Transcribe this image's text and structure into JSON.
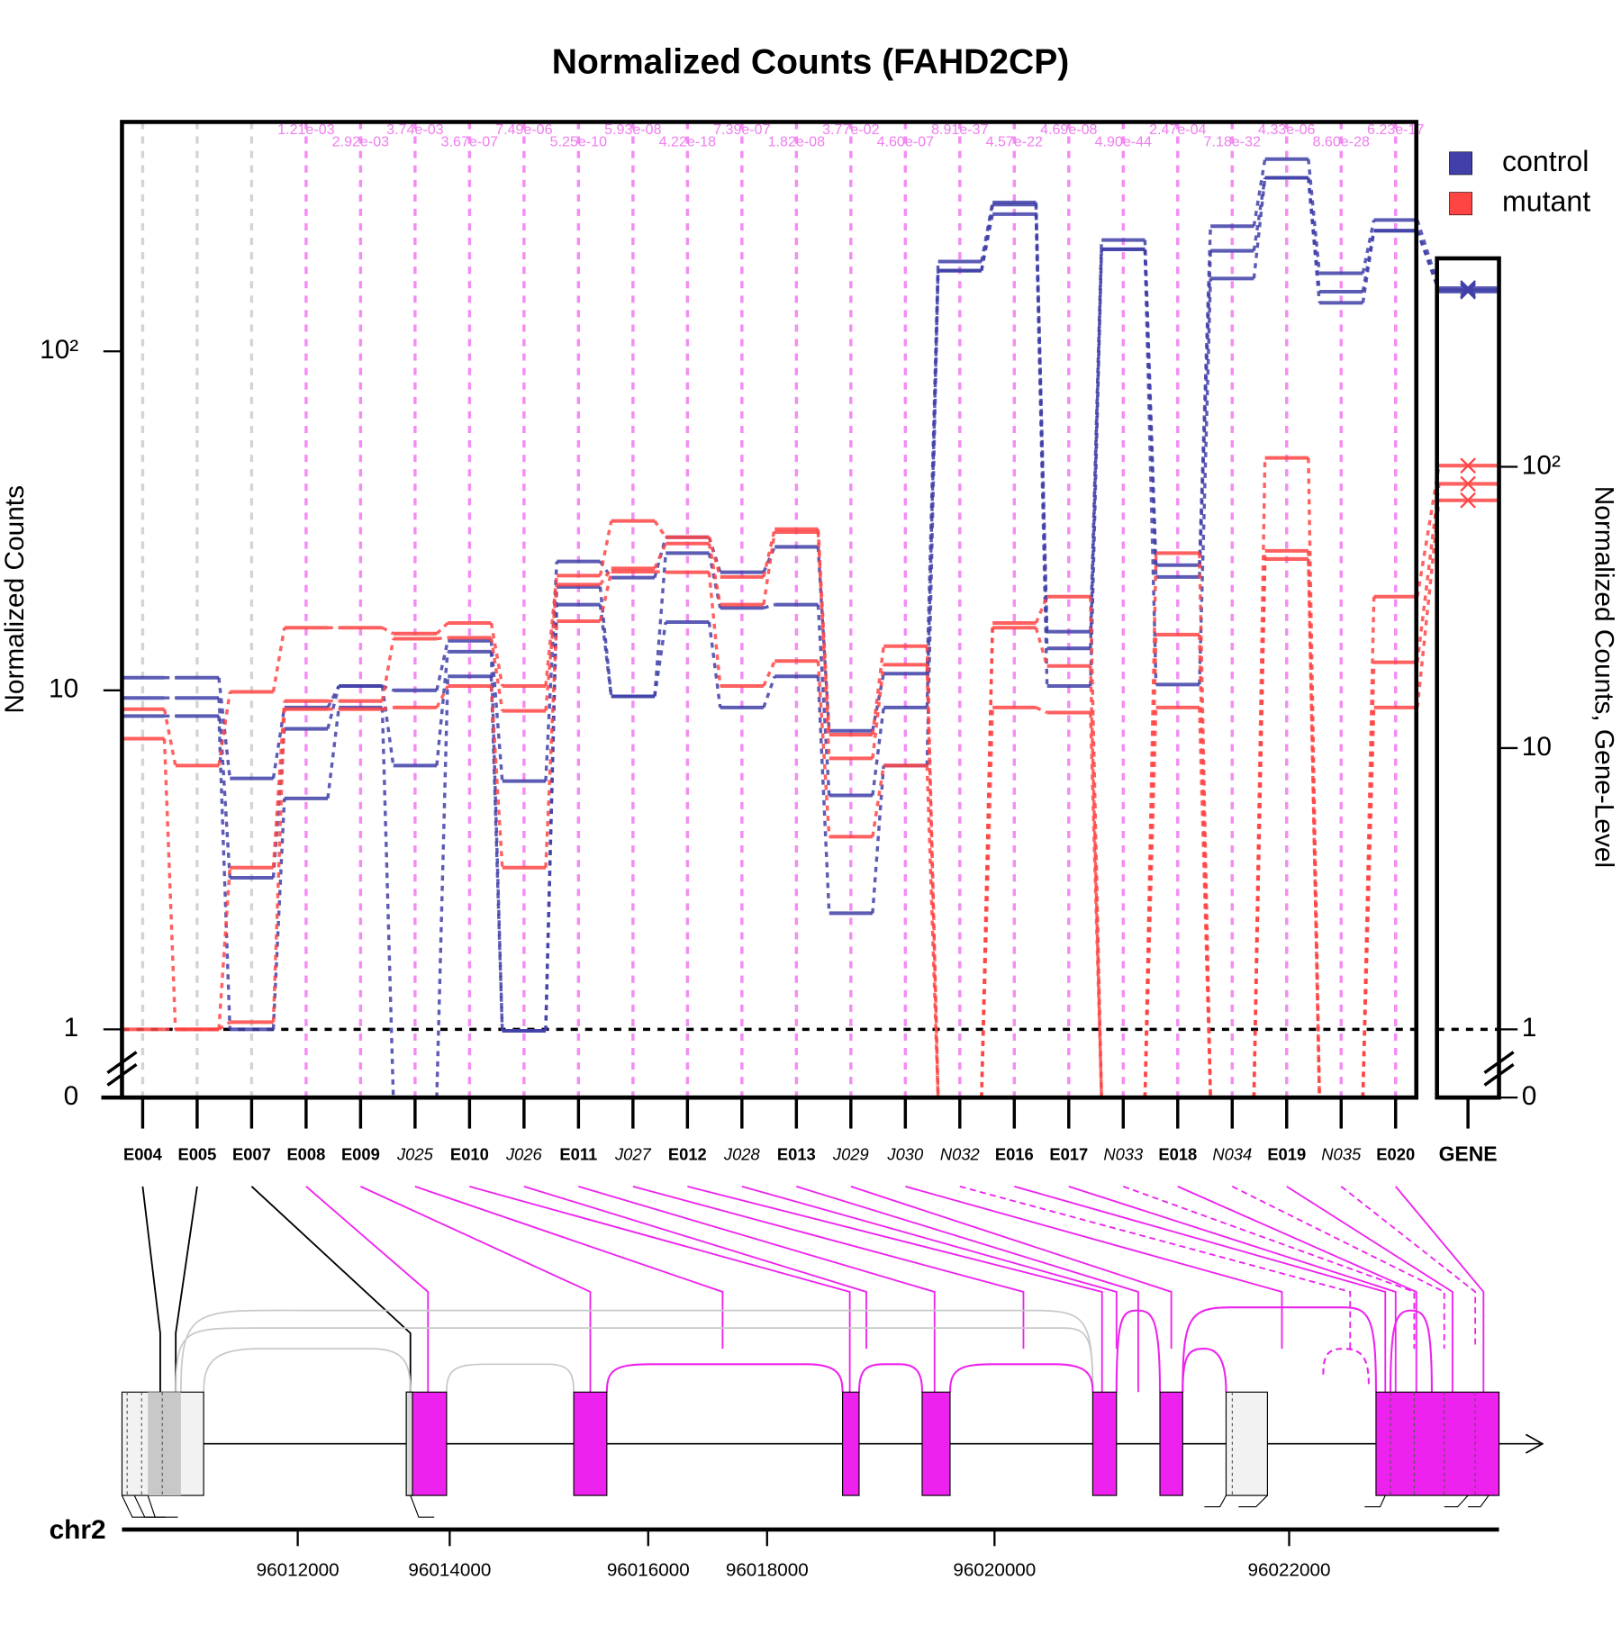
{
  "chart_data": {
    "type": "junction-profile",
    "title": "Normalized Counts (FAHD2CP)",
    "y_label": "Normalized Counts",
    "y2_label": "Normalized Counts, Gene-Level",
    "features": [
      "E004",
      "E005",
      "E007",
      "E008",
      "E009",
      "J025",
      "E010",
      "J026",
      "E011",
      "J027",
      "E012",
      "J028",
      "E013",
      "J029",
      "J030",
      "N032",
      "E016",
      "E017",
      "N033",
      "E018",
      "N034",
      "E019",
      "N035",
      "E020"
    ],
    "gene_label": "GENE",
    "pvalues": [
      null,
      null,
      null,
      "1.21e-03",
      "2.92e-03",
      "3.74e-03",
      "3.67e-07",
      "7.49e-06",
      "5.25e-10",
      "5.93e-08",
      "4.22e-18",
      "7.39e-07",
      "1.82e-08",
      "3.77e-02",
      "4.60e-07",
      "8.91e-37",
      "4.57e-22",
      "4.69e-08",
      "4.90e-44",
      "2.47e-04",
      "7.18e-32",
      "4.33e-06",
      "8.60e-28",
      "6.23e-17"
    ],
    "series": [
      {
        "name": "control",
        "color": "#4040a8",
        "values": [
          [
            10.9,
            9.5,
            8.4
          ],
          [
            10.9,
            9.5,
            8.4
          ],
          [
            5.5,
            2.8,
            1
          ],
          [
            8.9,
            7.7,
            4.8
          ],
          [
            10.3,
            10.3,
            8.9
          ],
          [
            10,
            6,
            0
          ],
          [
            14,
            13,
            11
          ],
          [
            5.4,
            0.99,
            0.99
          ],
          [
            24,
            20.2,
            17.9
          ],
          [
            21.5,
            9.6,
            9.6
          ],
          [
            28.3,
            25.4,
            15.9
          ],
          [
            22.3,
            17.5,
            8.9
          ],
          [
            26.5,
            17.9,
            11
          ],
          [
            7.6,
            4.9,
            2.2
          ],
          [
            11.2,
            8.9,
            6
          ],
          [
            184,
            173,
            173
          ],
          [
            275,
            271,
            254
          ],
          [
            14.9,
            13.3,
            10.3
          ],
          [
            213,
            200,
            200
          ],
          [
            23.4,
            21.6,
            10.4
          ],
          [
            234,
            198,
            164
          ],
          [
            369,
            325,
            325
          ],
          [
            170,
            150,
            139
          ],
          [
            244,
            227,
            227
          ]
        ],
        "gene_values": [
          432,
          425,
          420
        ]
      },
      {
        "name": "mutant",
        "color": "#ff4444",
        "values": [
          [
            8.8,
            7.2,
            1
          ],
          [
            6,
            1,
            1
          ],
          [
            9.9,
            3,
            1.05
          ],
          [
            15.3,
            9.3,
            8.8
          ],
          [
            15.3,
            9.3,
            8.8
          ],
          [
            14.7,
            14.2,
            8.9
          ],
          [
            15.8,
            14.3,
            10.3
          ],
          [
            10.3,
            8.7,
            3
          ],
          [
            21.8,
            20.5,
            16
          ],
          [
            31.6,
            22.9,
            22.4
          ],
          [
            28.3,
            27.1,
            22.3
          ],
          [
            21.6,
            17.9,
            10.3
          ],
          [
            29.9,
            29.3,
            12.2
          ],
          [
            7.4,
            6.3,
            3.7
          ],
          [
            13.5,
            11.9,
            6
          ],
          [
            0,
            0,
            0
          ],
          [
            15.8,
            15.3,
            8.9
          ],
          [
            18.9,
            11.8,
            8.6
          ],
          [
            0,
            0,
            0
          ],
          [
            25.4,
            14.6,
            8.9
          ],
          [
            0,
            0,
            0
          ],
          [
            48.5,
            25.8,
            24.4
          ],
          [
            0,
            0,
            0
          ],
          [
            18.9,
            12.1,
            8.9
          ]
        ],
        "gene_values": [
          101,
          87,
          76
        ]
      }
    ],
    "ylim": [
      0,
      475
    ],
    "yticks": [
      0,
      1,
      10,
      {
        "value": 100,
        "label": "10²"
      }
    ],
    "y2lim": [
      0,
      551
    ],
    "y2ticks": [
      0,
      1,
      10,
      {
        "value": 100,
        "label": "10²"
      }
    ],
    "log_scale": true,
    "legend": "top-right",
    "genome_axis": {
      "label": "chr2",
      "ticks": [
        96012000,
        96014000,
        96016000,
        96018000,
        96020000,
        96022000
      ]
    }
  }
}
